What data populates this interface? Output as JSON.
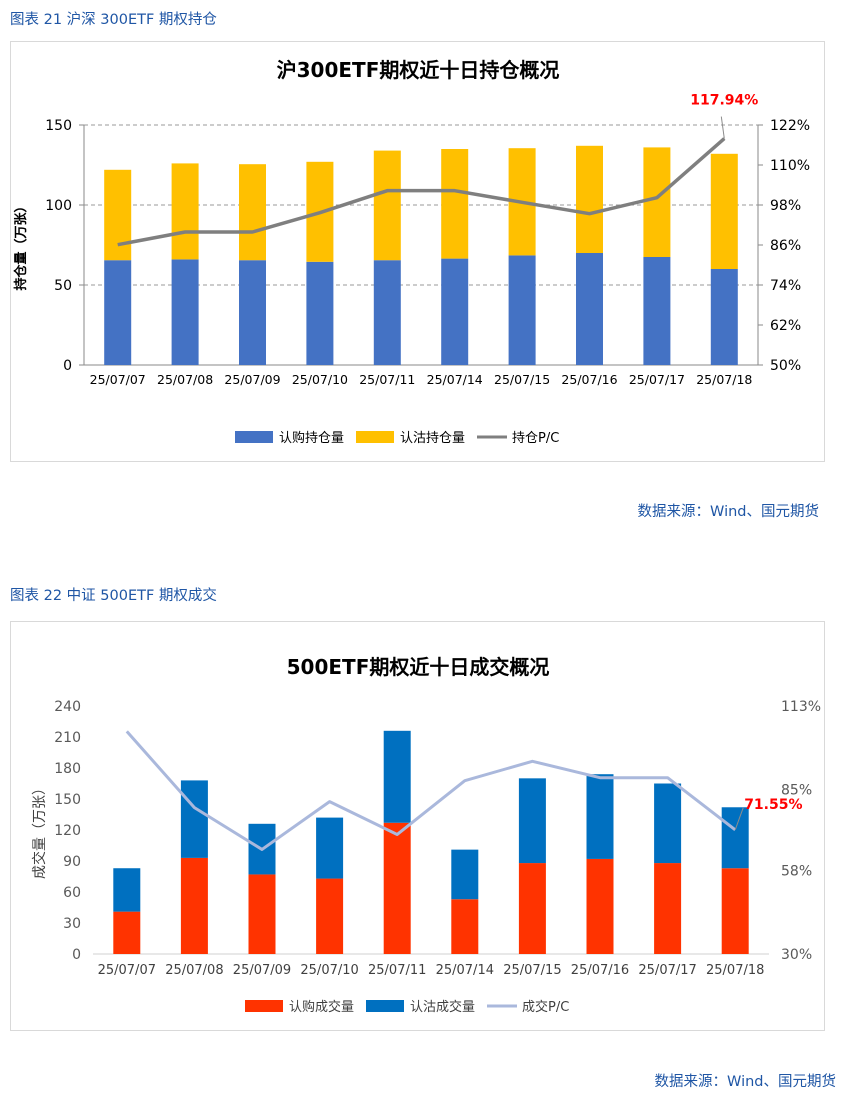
{
  "figure1": {
    "caption": "图表 21 沪深 300ETF 期权持仓",
    "source": "数据来源：Wind、国元期货"
  },
  "figure2": {
    "caption": "图表 22 中证 500ETF 期权成交",
    "source": "数据来源：Wind、国元期货"
  },
  "chart_data": [
    {
      "type": "bar",
      "stacked": true,
      "title": "沪300ETF期权近十日持仓概况",
      "ylabel": "持仓量（万张）",
      "y2label": "",
      "ylim": [
        0,
        150
      ],
      "yticks": [
        0,
        50,
        100,
        150
      ],
      "y2lim": [
        50,
        122
      ],
      "y2ticks": [
        "50%",
        "62%",
        "74%",
        "86%",
        "98%",
        "110%",
        "122%"
      ],
      "y2tick_values": [
        50,
        62,
        74,
        86,
        98,
        110,
        122
      ],
      "grid": true,
      "legend_position": "bottom",
      "categories": [
        "25/07/07",
        "25/07/08",
        "25/07/09",
        "25/07/10",
        "25/07/11",
        "25/07/14",
        "25/07/15",
        "25/07/16",
        "25/07/17",
        "25/07/18"
      ],
      "series": [
        {
          "name": "认购持仓量",
          "kind": "bar",
          "color": "#4472c4",
          "values": [
            65.5,
            66,
            65.5,
            64.5,
            65.5,
            66.5,
            68.5,
            70,
            67.5,
            60
          ]
        },
        {
          "name": "认沽持仓量",
          "kind": "bar",
          "color": "#ffc000",
          "values": [
            56.5,
            60,
            60,
            62.5,
            68.5,
            68.5,
            67,
            67,
            68.5,
            72
          ]
        },
        {
          "name": "持仓P/C",
          "kind": "line",
          "axis": "right",
          "color": "#7f7f7f",
          "values": [
            86.1,
            89.9,
            89.9,
            95.7,
            102.3,
            102.3,
            98.8,
            95.4,
            100.2,
            117.94
          ]
        }
      ],
      "annotation": {
        "text": "117.94%",
        "color": "#ff0000"
      }
    },
    {
      "type": "bar",
      "stacked": true,
      "title": "500ETF期权近十日成交概况",
      "ylabel": "成交量（万张）",
      "ylim": [
        0,
        240
      ],
      "yticks": [
        0,
        30,
        60,
        90,
        120,
        150,
        180,
        210,
        240
      ],
      "y2lim": [
        30,
        113
      ],
      "y2ticks": [
        "30%",
        "58%",
        "85%",
        "113%"
      ],
      "y2tick_values": [
        30,
        58,
        85,
        113
      ],
      "grid": false,
      "legend_position": "bottom",
      "categories": [
        "25/07/07",
        "25/07/08",
        "25/07/09",
        "25/07/10",
        "25/07/11",
        "25/07/14",
        "25/07/15",
        "25/07/16",
        "25/07/17",
        "25/07/18"
      ],
      "series": [
        {
          "name": "认购成交量",
          "kind": "bar",
          "color": "#ff3300",
          "values": [
            41,
            93,
            77,
            73,
            127,
            53,
            88,
            92,
            88,
            83
          ]
        },
        {
          "name": "认沽成交量",
          "kind": "bar",
          "color": "#0070c0",
          "values": [
            42,
            75,
            49,
            59,
            89,
            48,
            82,
            82,
            77,
            59
          ]
        },
        {
          "name": "成交P/C",
          "kind": "line",
          "axis": "right",
          "color": "#aab8dc",
          "values": [
            104.5,
            79,
            65,
            81,
            70,
            88,
            94.5,
            89,
            89,
            71.55
          ]
        }
      ],
      "annotation": {
        "text": "71.55%",
        "color": "#ff0000"
      }
    }
  ]
}
